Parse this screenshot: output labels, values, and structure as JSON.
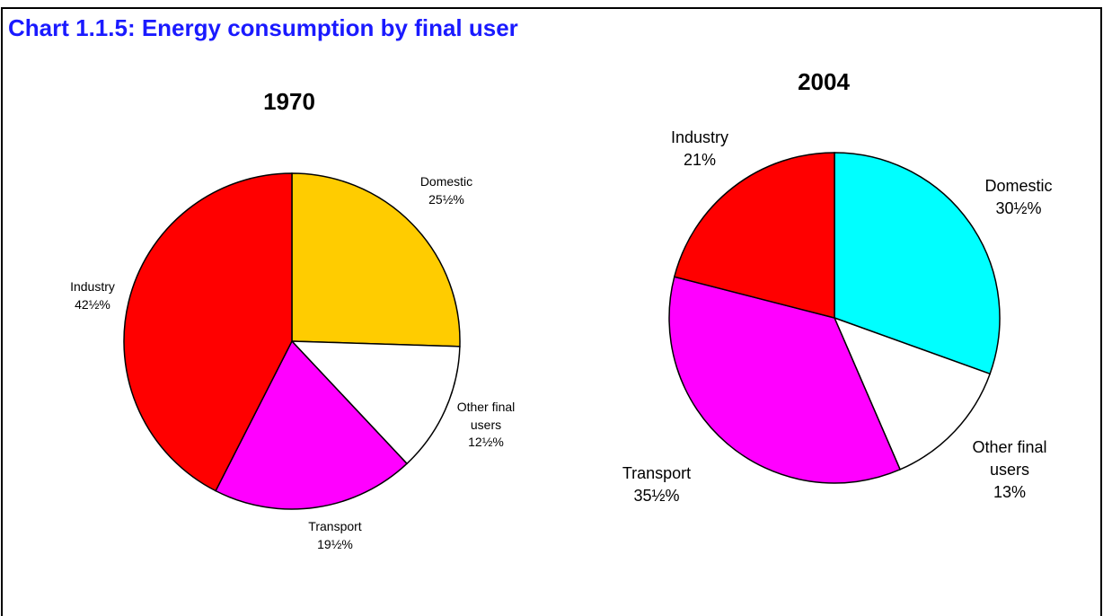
{
  "title": "Chart 1.1.5:  Energy consumption by final user",
  "chart_data": [
    {
      "type": "pie",
      "title": "1970",
      "categories": [
        "Domestic",
        "Other final users",
        "Transport",
        "Industry"
      ],
      "values": [
        25.5,
        12.5,
        19.5,
        42.5
      ],
      "value_labels": [
        "25½%",
        "12½%",
        "19½%",
        "42½%"
      ],
      "colors": [
        "#ffcc00",
        "#ffffff",
        "#ff00ff",
        "#ff0000"
      ]
    },
    {
      "type": "pie",
      "title": "2004",
      "categories": [
        "Domestic",
        "Other final users",
        "Transport",
        "Industry"
      ],
      "values": [
        30.5,
        13,
        35.5,
        21
      ],
      "value_labels": [
        "30½%",
        "13%",
        "35½%",
        "21%"
      ],
      "colors": [
        "#00ffff",
        "#ffffff",
        "#ff00ff",
        "#ff0000"
      ]
    }
  ]
}
